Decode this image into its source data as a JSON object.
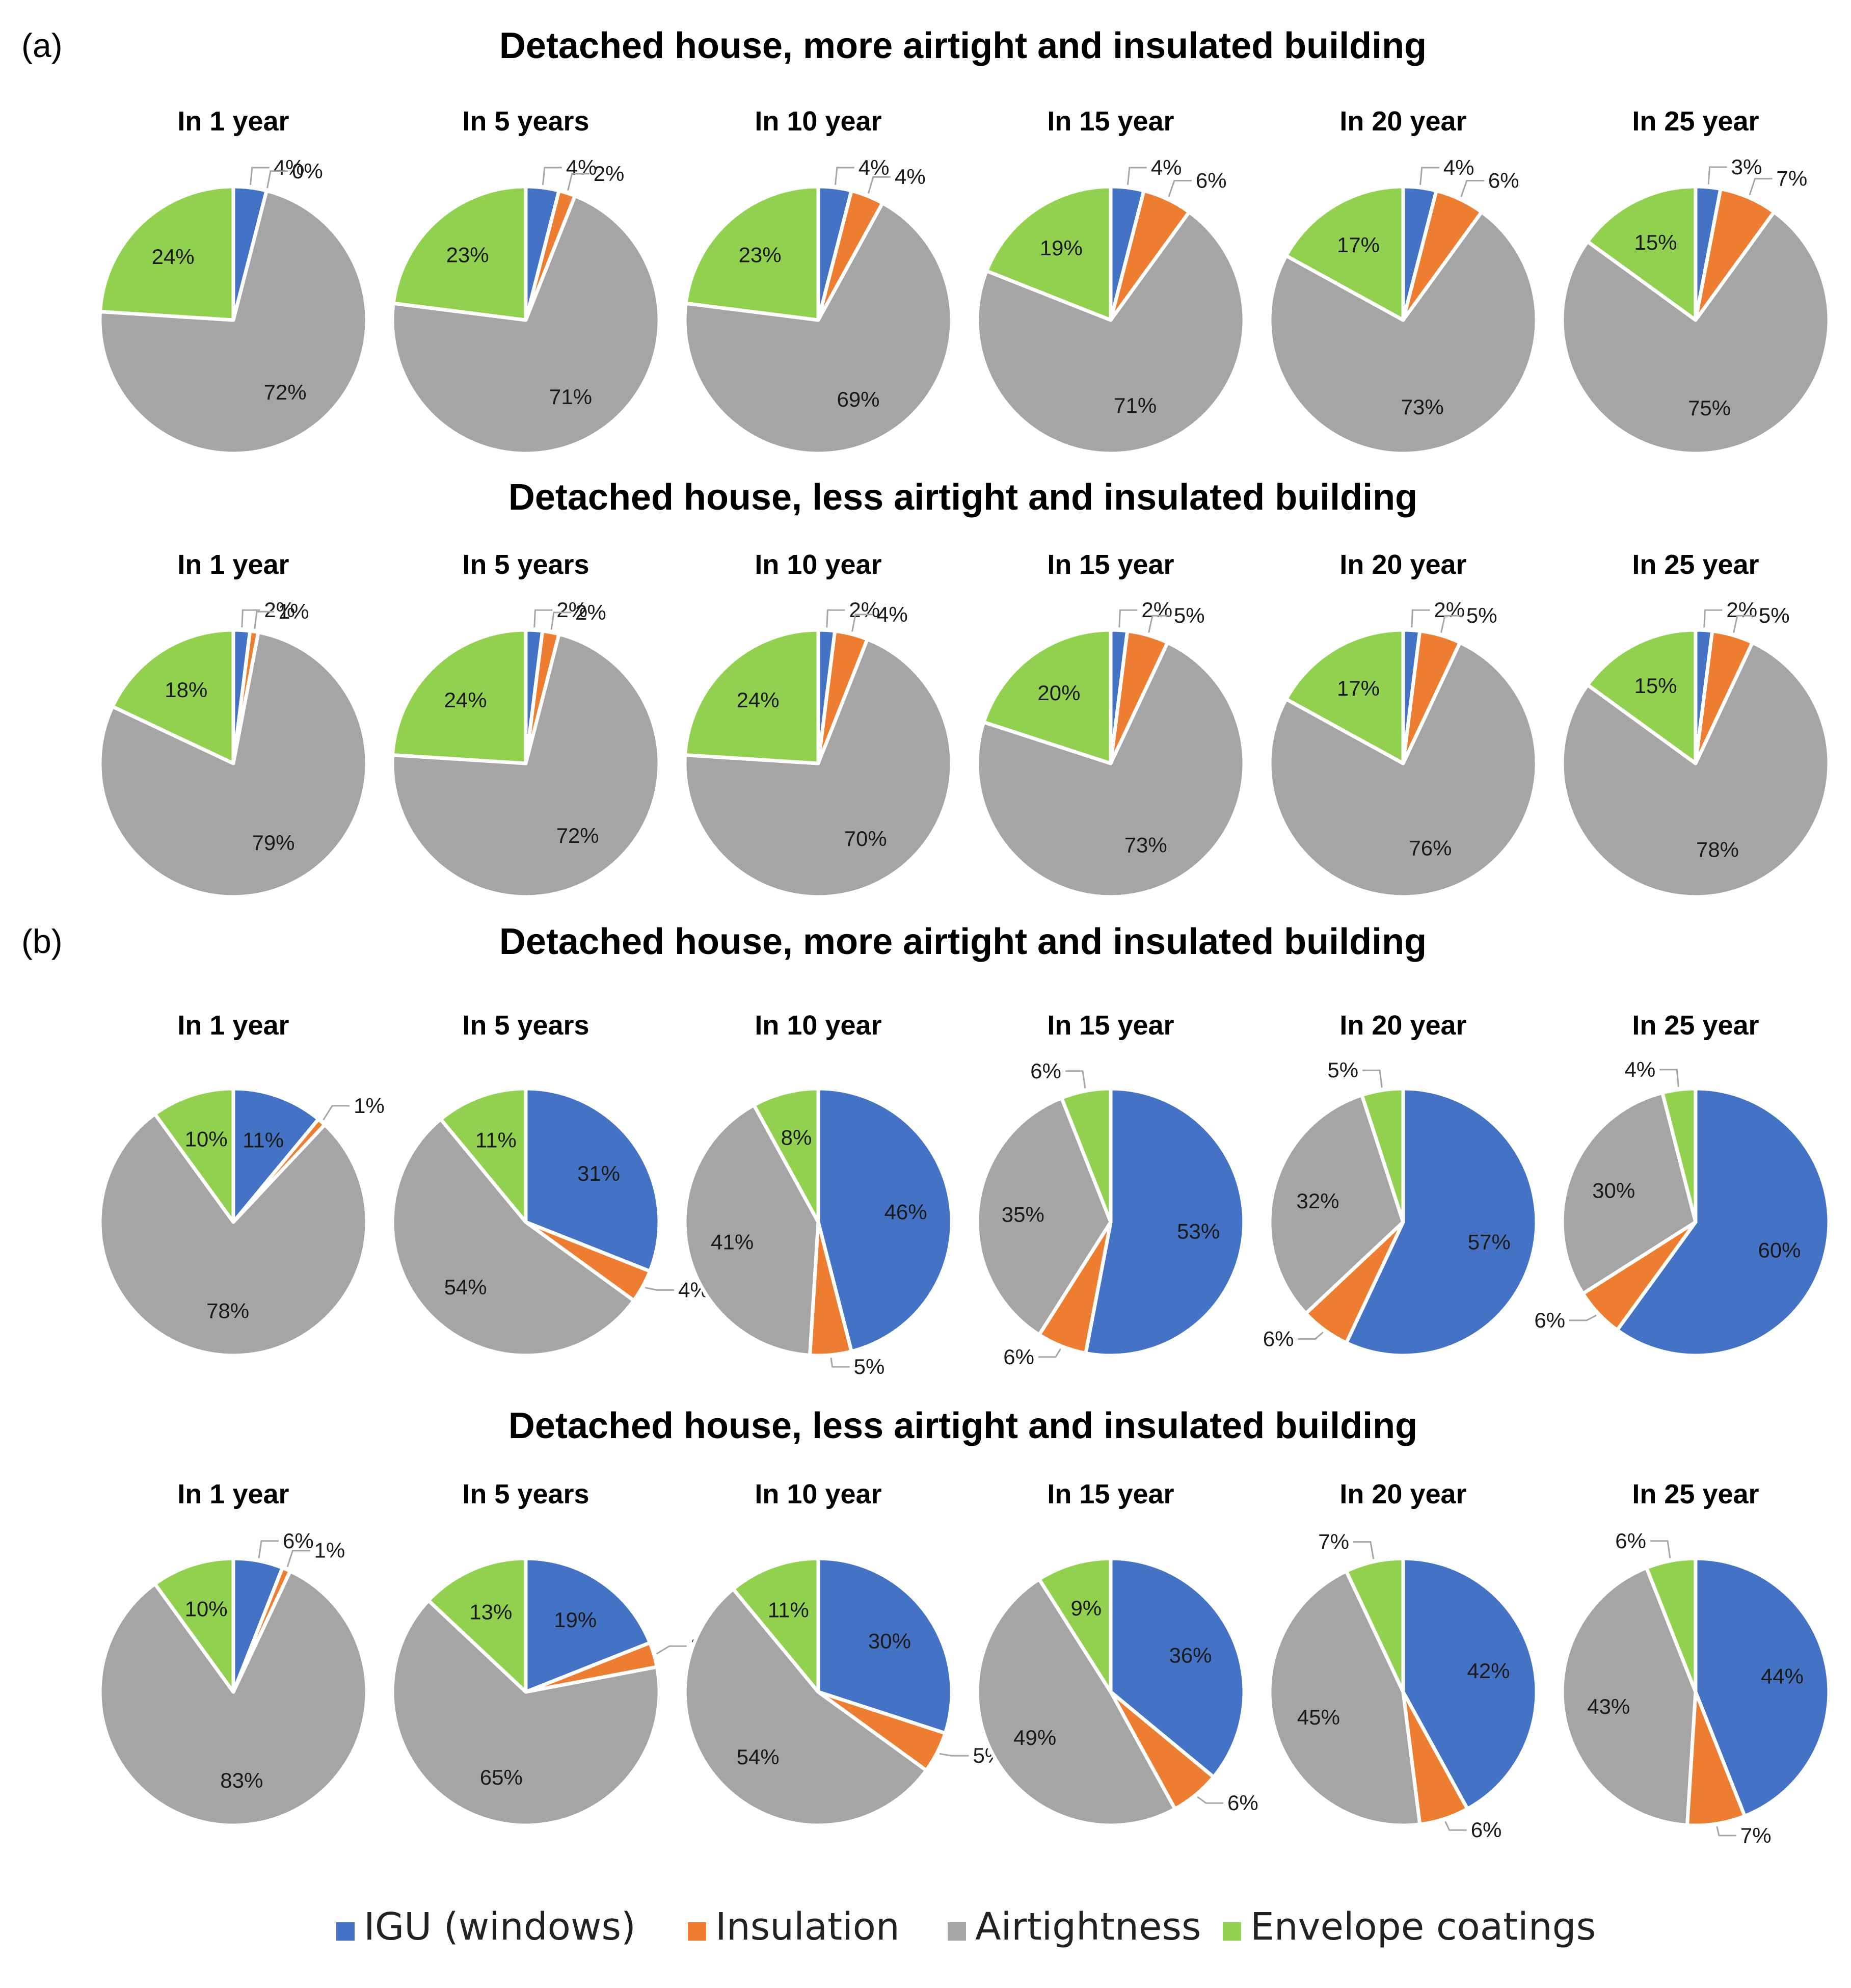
{
  "colors": {
    "igu": "#4472C4",
    "insulation": "#ED7D31",
    "airtightness": "#A5A5A5",
    "coatings": "#92D050"
  },
  "legend": [
    {
      "key": "igu",
      "label": "IGU (windows)"
    },
    {
      "key": "insulation",
      "label": "Insulation"
    },
    {
      "key": "airtightness",
      "label": "Airtightness"
    },
    {
      "key": "coatings",
      "label": "Envelope coatings"
    }
  ],
  "chart_data": [
    {
      "type": "pie",
      "panel_label": "(a)",
      "title": "Detached house, more airtight and insulated building",
      "series_order": [
        "IGU (windows)",
        "Insulation",
        "Airtightness",
        "Envelope coatings"
      ],
      "pies": [
        {
          "label": "In 1 year",
          "values": [
            4,
            0,
            72,
            24
          ]
        },
        {
          "label": "In 5 years",
          "values": [
            4,
            2,
            71,
            23
          ]
        },
        {
          "label": "In 10 year",
          "values": [
            4,
            4,
            69,
            23
          ]
        },
        {
          "label": "In 15 year",
          "values": [
            4,
            6,
            71,
            19
          ]
        },
        {
          "label": "In 20 year",
          "values": [
            4,
            6,
            73,
            17
          ]
        },
        {
          "label": "In 25 year",
          "values": [
            3,
            7,
            75,
            15
          ]
        }
      ]
    },
    {
      "type": "pie",
      "panel_label": "",
      "title": "Detached house, less airtight and insulated building",
      "series_order": [
        "IGU (windows)",
        "Insulation",
        "Airtightness",
        "Envelope coatings"
      ],
      "pies": [
        {
          "label": "In 1 year",
          "values": [
            2,
            1,
            79,
            18
          ]
        },
        {
          "label": "In 5 years",
          "values": [
            2,
            2,
            72,
            24
          ]
        },
        {
          "label": "In 10 year",
          "values": [
            2,
            4,
            70,
            24
          ]
        },
        {
          "label": "In 15 year",
          "values": [
            2,
            5,
            73,
            20
          ]
        },
        {
          "label": "In 20 year",
          "values": [
            2,
            5,
            76,
            17
          ]
        },
        {
          "label": "In 25 year",
          "values": [
            2,
            5,
            78,
            15
          ]
        }
      ]
    },
    {
      "type": "pie",
      "panel_label": "(b)",
      "title": "Detached house, more airtight and insulated building",
      "series_order": [
        "IGU (windows)",
        "Insulation",
        "Airtightness",
        "Envelope coatings"
      ],
      "pies": [
        {
          "label": "In 1 year",
          "values": [
            11,
            1,
            78,
            10
          ]
        },
        {
          "label": "In 5 years",
          "values": [
            31,
            4,
            54,
            11
          ]
        },
        {
          "label": "In 10 year",
          "values": [
            46,
            5,
            41,
            8
          ]
        },
        {
          "label": "In 15 year",
          "values": [
            53,
            6,
            35,
            6
          ]
        },
        {
          "label": "In 20 year",
          "values": [
            57,
            6,
            32,
            5
          ]
        },
        {
          "label": "In 25 year",
          "values": [
            60,
            6,
            30,
            4
          ]
        }
      ]
    },
    {
      "type": "pie",
      "panel_label": "",
      "title": "Detached house, less airtight and insulated building",
      "series_order": [
        "IGU (windows)",
        "Insulation",
        "Airtightness",
        "Envelope coatings"
      ],
      "pies": [
        {
          "label": "In 1 year",
          "values": [
            6,
            1,
            83,
            10
          ]
        },
        {
          "label": "In 5 years",
          "values": [
            19,
            3,
            65,
            13
          ]
        },
        {
          "label": "In 10 year",
          "values": [
            30,
            5,
            54,
            11
          ]
        },
        {
          "label": "In 15 year",
          "values": [
            36,
            6,
            49,
            9
          ]
        },
        {
          "label": "In 20 year",
          "values": [
            42,
            6,
            45,
            7
          ]
        },
        {
          "label": "In 25 year",
          "values": [
            44,
            7,
            43,
            6
          ]
        }
      ]
    }
  ]
}
